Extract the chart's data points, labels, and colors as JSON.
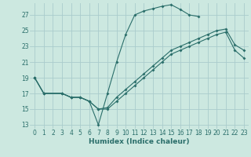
{
  "background_color": "#cce8e0",
  "grid_color": "#aacccc",
  "line_color": "#2a6e6a",
  "xlabel": "Humidex (Indice chaleur)",
  "ylim": [
    12.5,
    28.5
  ],
  "xlim": [
    -0.5,
    23.5
  ],
  "yticks": [
    13,
    15,
    17,
    19,
    21,
    23,
    25,
    27
  ],
  "xticks": [
    0,
    1,
    2,
    3,
    4,
    5,
    6,
    7,
    8,
    9,
    10,
    11,
    12,
    13,
    14,
    15,
    16,
    17,
    18,
    19,
    20,
    21,
    22,
    23
  ],
  "line1": {
    "x": [
      0,
      1,
      3,
      4,
      5,
      6,
      7,
      8,
      9,
      10,
      11,
      12,
      13,
      14,
      15,
      16,
      17,
      18
    ],
    "y": [
      19,
      17,
      17,
      16.5,
      16.5,
      16,
      13,
      17,
      21,
      24.5,
      27,
      27.5,
      27.8,
      28.1,
      28.3,
      27.7,
      27.0,
      26.8
    ]
  },
  "line2": {
    "x": [
      0,
      1,
      3,
      4,
      5,
      6,
      7,
      8,
      9,
      10,
      11,
      12,
      13,
      14,
      15,
      16,
      17,
      18,
      19,
      20,
      21,
      22,
      23
    ],
    "y": [
      19,
      17,
      17,
      16.5,
      16.5,
      16,
      15,
      15.2,
      16.5,
      17.5,
      18.5,
      19.5,
      20.5,
      21.5,
      22.5,
      23.0,
      23.5,
      24.0,
      24.5,
      25.0,
      25.2,
      23.2,
      22.5
    ]
  },
  "line3": {
    "x": [
      0,
      1,
      3,
      4,
      5,
      6,
      7,
      8,
      9,
      10,
      11,
      12,
      13,
      14,
      15,
      16,
      17,
      18,
      19,
      20,
      21,
      22,
      23
    ],
    "y": [
      19,
      17,
      17,
      16.5,
      16.5,
      16,
      15,
      15.0,
      16.0,
      17.0,
      18.0,
      19.0,
      20.0,
      21.0,
      22.0,
      22.5,
      23.0,
      23.5,
      24.0,
      24.5,
      24.8,
      22.5,
      21.5
    ]
  }
}
